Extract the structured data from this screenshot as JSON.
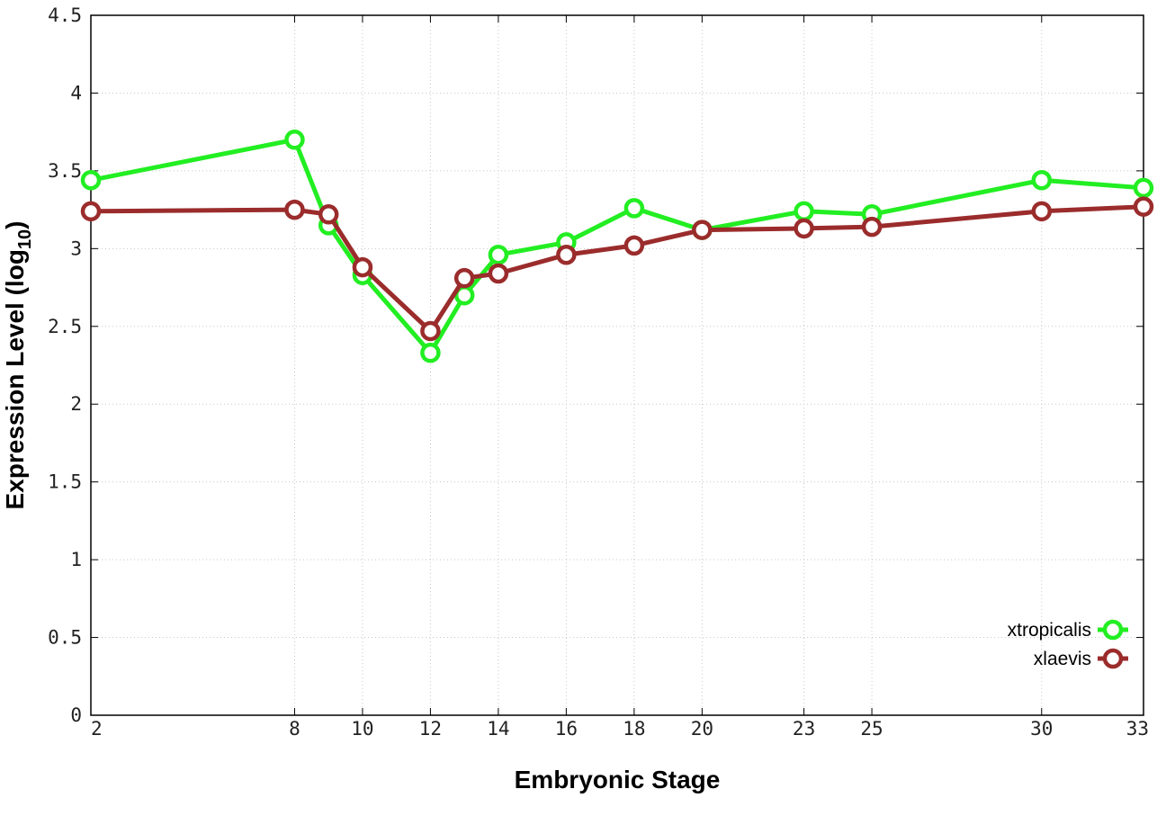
{
  "chart_data": {
    "type": "line",
    "xlabel": "Embryonic Stage",
    "ylabel": "Expression Level (log",
    "ylabel_subscript": "10",
    "ylabel_close": ")",
    "x_ticks": [
      "2",
      "8",
      "10",
      "12",
      "14",
      "16",
      "18",
      "20",
      "23",
      "25",
      "30",
      "33"
    ],
    "y_ticks": [
      "0",
      "0.5",
      "1",
      "1.5",
      "2",
      "2.5",
      "3",
      "3.5",
      "4",
      "4.5"
    ],
    "x_positions": [
      2,
      8,
      10,
      12,
      14,
      16,
      18,
      20,
      23,
      25,
      30,
      33
    ],
    "ylim": [
      0,
      4.5
    ],
    "grid": true,
    "legend_position": "bottom-right",
    "series": [
      {
        "name": "xtropicalis",
        "color": "#22ee22",
        "x": [
          2,
          8,
          9,
          10,
          12,
          13,
          14,
          16,
          18,
          20,
          23,
          25,
          30,
          33
        ],
        "values": [
          3.44,
          3.7,
          3.15,
          2.83,
          2.33,
          2.7,
          2.96,
          3.04,
          3.26,
          3.12,
          3.24,
          3.22,
          3.44,
          3.39
        ]
      },
      {
        "name": "xlaevis",
        "color": "#9b2c2c",
        "x": [
          2,
          8,
          9,
          10,
          12,
          13,
          14,
          16,
          18,
          20,
          23,
          25,
          30,
          33
        ],
        "values": [
          3.24,
          3.25,
          3.22,
          2.88,
          2.47,
          2.81,
          2.84,
          2.96,
          3.02,
          3.12,
          3.13,
          3.14,
          3.24,
          3.27
        ]
      }
    ]
  }
}
